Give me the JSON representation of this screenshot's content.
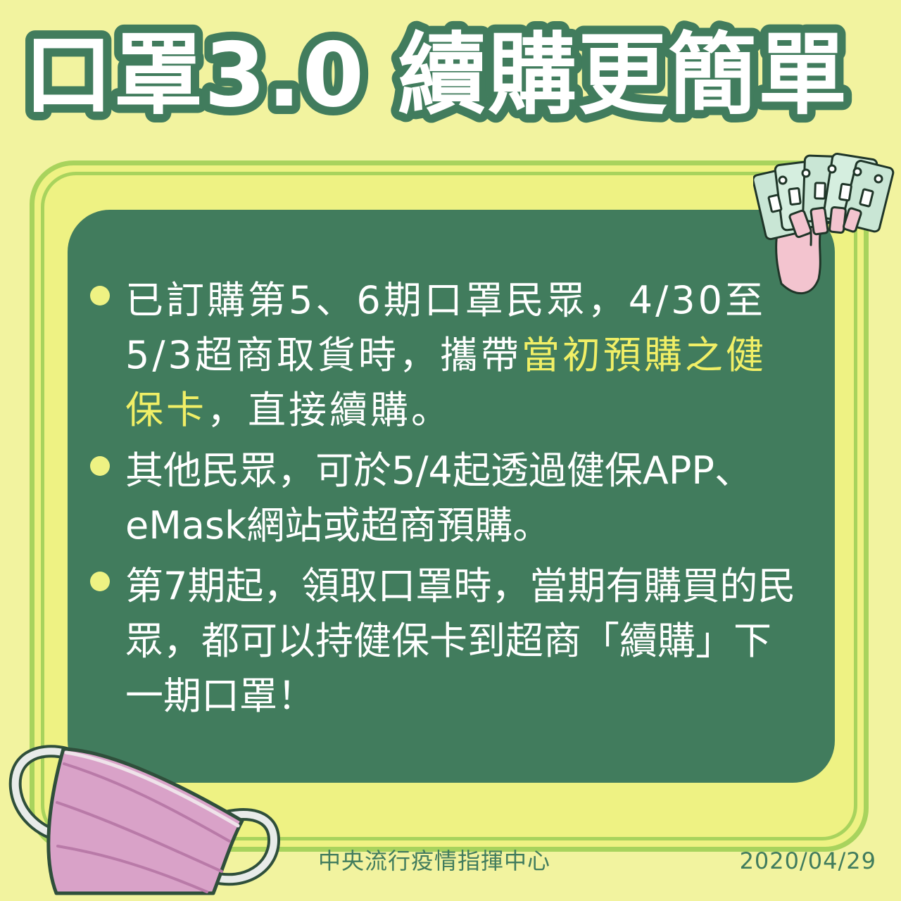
{
  "title": "口罩3.0 續購更簡單",
  "bullets": [
    {
      "before": "已訂購第5、6期口罩民眾，4/30至5/3超商取貨時，攜帶",
      "highlight": "當初預購之健保卡",
      "after": "，直接續購。"
    },
    {
      "text": "其他民眾，可於5/4起透過健保APP、eMask網站或超商預購。"
    },
    {
      "text": "第7期起，領取口罩時，當期有購買的民眾，都可以持健保卡到超商「續購」下一期口罩！"
    }
  ],
  "footer": {
    "org": "中央流行疫情指揮中心",
    "date": "2020/04/29"
  },
  "colors": {
    "background": "#f2f39f",
    "frame": "#a8d35d",
    "panel": "#417c5d",
    "highlight": "#f1ef66",
    "mask": "#d9a2c8"
  },
  "icons": {
    "cards": "health-insurance-cards-hand-icon",
    "mask": "face-mask-icon"
  }
}
